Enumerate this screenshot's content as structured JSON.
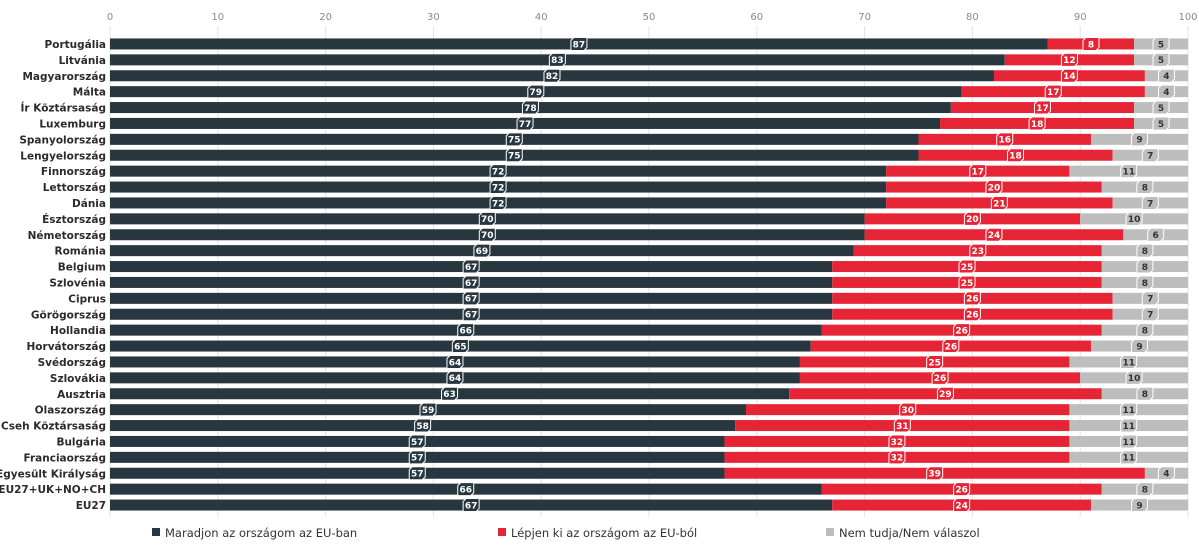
{
  "chart_data": {
    "type": "bar",
    "orientation": "horizontal",
    "stacked": true,
    "xlim": [
      0,
      100
    ],
    "ticks": [
      0,
      10,
      20,
      30,
      40,
      50,
      60,
      70,
      80,
      90,
      100
    ],
    "categories": [
      "Portugália",
      "Litvánia",
      "Magyarország",
      "Málta",
      "Ír Köztársaság",
      "Luxemburg",
      "Spanyolország",
      "Lengyelország",
      "Finnország",
      "Lettország",
      "Dánia",
      "Észtország",
      "Németország",
      "Románia",
      "Belgium",
      "Szlovénia",
      "Ciprus",
      "Görögország",
      "Hollandia",
      "Horvátország",
      "Svédország",
      "Szlovákia",
      "Ausztria",
      "Olaszország",
      "Cseh Köztársaság",
      "Bulgária",
      "Franciaország",
      "Egyesült Királyság",
      "EU27+UK+NO+CH",
      "EU27"
    ],
    "series": [
      {
        "name": "Maradjon az országom az EU-ban",
        "color": "#27363f",
        "values": [
          87,
          83,
          82,
          79,
          78,
          77,
          75,
          75,
          72,
          72,
          72,
          70,
          70,
          69,
          67,
          67,
          67,
          67,
          66,
          65,
          64,
          64,
          63,
          59,
          58,
          57,
          57,
          57,
          66,
          67
        ]
      },
      {
        "name": "Lépjen ki az országom az EU-ból",
        "color": "#e52535",
        "values": [
          8,
          12,
          14,
          17,
          17,
          18,
          16,
          18,
          17,
          20,
          21,
          20,
          24,
          23,
          25,
          25,
          26,
          26,
          26,
          26,
          25,
          26,
          29,
          30,
          31,
          32,
          32,
          39,
          26,
          24
        ]
      },
      {
        "name": "Nem tudja/Nem válaszol",
        "color": "#bdbdbd",
        "values": [
          5,
          5,
          4,
          4,
          5,
          5,
          9,
          7,
          11,
          8,
          7,
          10,
          6,
          8,
          8,
          8,
          7,
          7,
          8,
          9,
          11,
          10,
          8,
          11,
          11,
          11,
          11,
          4,
          8,
          9
        ]
      }
    ],
    "legend_position": "bottom",
    "grid": true
  }
}
